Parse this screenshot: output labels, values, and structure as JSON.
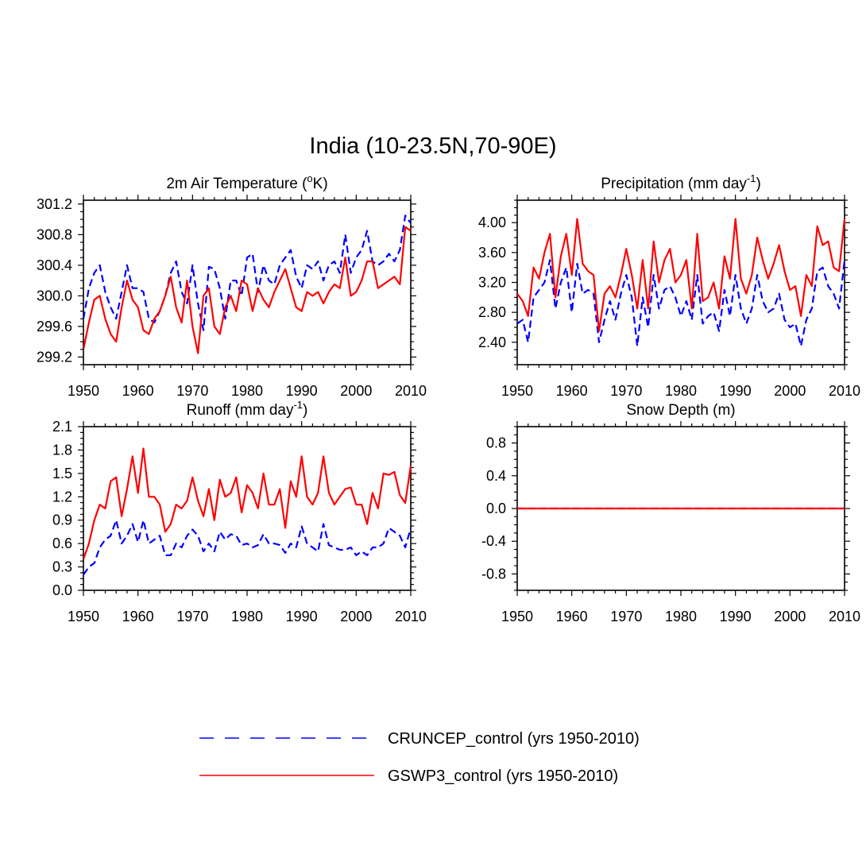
{
  "title": "India (10-23.5N,70-90E)",
  "colors": {
    "cruncep": "#0000ff",
    "gswp3": "#ff0000"
  },
  "legend": [
    {
      "name": "CRUNCEP_control (yrs 1950-2010)",
      "color": "#0000ff",
      "style": "dashed"
    },
    {
      "name": "GSWP3_control (yrs 1950-2010)",
      "color": "#ff0000",
      "style": "solid"
    }
  ],
  "chart_data": [
    {
      "type": "line",
      "title": "2m Air Temperature (",
      "title_sup": "o",
      "title_after": "K)",
      "title_sup_after": "",
      "title_tail": "",
      "xlim": [
        1950,
        2010
      ],
      "ylim": [
        299.1,
        301.25
      ],
      "xticks": [
        1950,
        1960,
        1970,
        1980,
        1990,
        2000,
        2010
      ],
      "yticks": [
        299.2,
        299.6,
        300.0,
        300.4,
        300.8,
        301.2
      ],
      "ytick_labels": [
        "299.2",
        "299.6",
        "300.0",
        "300.4",
        "300.8",
        "301.2"
      ],
      "series": [
        {
          "name": "CRUNCEP_control (yrs 1950-2010)",
          "style": "dashed",
          "values": [
            299.7,
            300.1,
            300.3,
            300.4,
            300.05,
            299.85,
            299.7,
            300.05,
            300.4,
            300.1,
            300.1,
            300.05,
            299.7,
            299.65,
            299.8,
            300.0,
            300.3,
            300.45,
            300.05,
            299.9,
            300.4,
            299.9,
            299.55,
            300.38,
            300.35,
            300.1,
            299.7,
            300.2,
            300.2,
            300.0,
            300.5,
            300.55,
            300.05,
            300.4,
            300.2,
            300.15,
            300.4,
            300.5,
            300.6,
            300.25,
            300.1,
            300.4,
            300.35,
            300.45,
            300.2,
            300.4,
            300.45,
            300.3,
            300.8,
            300.3,
            300.5,
            300.6,
            300.85,
            300.45,
            300.4,
            300.45,
            300.55,
            300.45,
            300.6,
            301.05,
            300.95
          ]
        },
        {
          "name": "GSWP3_control (yrs 1950-2010)",
          "style": "solid",
          "values": [
            299.3,
            299.65,
            299.95,
            300.0,
            299.7,
            299.5,
            299.4,
            299.85,
            300.2,
            299.95,
            299.85,
            299.55,
            299.5,
            299.7,
            299.8,
            300.0,
            300.25,
            299.85,
            299.65,
            300.2,
            299.6,
            299.25,
            300.0,
            300.1,
            299.6,
            299.5,
            299.85,
            300.0,
            299.8,
            300.2,
            300.15,
            299.8,
            300.1,
            299.95,
            299.85,
            300.05,
            300.2,
            300.35,
            300.1,
            299.85,
            299.8,
            300.05,
            300.0,
            300.05,
            299.9,
            300.05,
            300.15,
            300.1,
            300.5,
            300.0,
            300.05,
            300.2,
            300.45,
            300.45,
            300.1,
            300.15,
            300.2,
            300.25,
            300.15,
            300.9,
            300.85
          ]
        }
      ]
    },
    {
      "type": "line",
      "title": "Precipitation (mm day",
      "title_sup": "-1",
      "title_after": ")",
      "xlim": [
        1950,
        2010
      ],
      "ylim": [
        2.1,
        4.3
      ],
      "xticks": [
        1950,
        1960,
        1970,
        1980,
        1990,
        2000,
        2010
      ],
      "yticks": [
        2.4,
        2.8,
        3.2,
        3.6,
        4.0
      ],
      "ytick_labels": [
        "2.40",
        "2.80",
        "3.20",
        "3.60",
        "4.00"
      ],
      "series": [
        {
          "name": "CRUNCEP_control (yrs 1950-2010)",
          "style": "dashed",
          "values": [
            2.65,
            2.7,
            2.4,
            3.0,
            3.1,
            3.2,
            3.5,
            2.85,
            3.2,
            3.4,
            2.8,
            3.45,
            3.05,
            3.1,
            3.05,
            2.4,
            2.7,
            2.95,
            2.7,
            3.05,
            3.3,
            3.0,
            2.35,
            3.0,
            2.6,
            3.3,
            2.85,
            3.1,
            3.15,
            3.0,
            2.75,
            2.95,
            2.7,
            3.3,
            2.65,
            2.75,
            2.8,
            2.55,
            3.1,
            2.75,
            3.3,
            2.85,
            2.65,
            2.85,
            3.3,
            2.95,
            2.8,
            2.85,
            3.05,
            2.7,
            2.6,
            2.65,
            2.35,
            2.7,
            2.85,
            3.35,
            3.4,
            3.15,
            3.05,
            2.85,
            3.5
          ]
        },
        {
          "name": "GSWP3_control (yrs 1950-2010)",
          "style": "solid",
          "values": [
            3.05,
            2.95,
            2.75,
            3.4,
            3.25,
            3.6,
            3.85,
            3.0,
            3.55,
            3.85,
            3.3,
            4.05,
            3.45,
            3.35,
            3.3,
            2.55,
            3.05,
            3.15,
            3.0,
            3.3,
            3.65,
            3.3,
            2.85,
            3.5,
            2.85,
            3.75,
            3.2,
            3.5,
            3.65,
            3.2,
            3.3,
            3.5,
            2.85,
            3.85,
            2.95,
            3.0,
            3.2,
            2.85,
            3.55,
            3.25,
            4.05,
            3.25,
            3.05,
            3.3,
            3.8,
            3.5,
            3.25,
            3.45,
            3.7,
            3.35,
            3.1,
            3.15,
            2.75,
            3.3,
            3.15,
            3.95,
            3.7,
            3.75,
            3.4,
            3.35,
            4.05
          ]
        }
      ]
    },
    {
      "type": "line",
      "title": "Runoff (mm day",
      "title_sup": "-1",
      "title_after": ")",
      "xlim": [
        1950,
        2010
      ],
      "ylim": [
        0.0,
        2.1
      ],
      "xticks": [
        1950,
        1960,
        1970,
        1980,
        1990,
        2000,
        2010
      ],
      "yticks": [
        0.0,
        0.3,
        0.6,
        0.9,
        1.2,
        1.5,
        1.8,
        2.1
      ],
      "ytick_labels": [
        "0.0",
        "0.3",
        "0.6",
        "0.9",
        "1.2",
        "1.5",
        "1.8",
        "2.1"
      ],
      "series": [
        {
          "name": "CRUNCEP_control (yrs 1950-2010)",
          "style": "dashed",
          "values": [
            0.2,
            0.3,
            0.35,
            0.55,
            0.65,
            0.7,
            0.9,
            0.6,
            0.7,
            0.85,
            0.62,
            0.9,
            0.6,
            0.65,
            0.7,
            0.45,
            0.45,
            0.6,
            0.55,
            0.7,
            0.78,
            0.7,
            0.5,
            0.6,
            0.5,
            0.75,
            0.65,
            0.72,
            0.7,
            0.58,
            0.6,
            0.55,
            0.58,
            0.72,
            0.6,
            0.6,
            0.58,
            0.48,
            0.6,
            0.55,
            0.82,
            0.6,
            0.55,
            0.5,
            0.85,
            0.58,
            0.55,
            0.52,
            0.52,
            0.55,
            0.45,
            0.5,
            0.45,
            0.55,
            0.55,
            0.6,
            0.8,
            0.75,
            0.7,
            0.55,
            0.8
          ]
        },
        {
          "name": "GSWP3_control (yrs 1950-2010)",
          "style": "solid",
          "values": [
            0.4,
            0.6,
            0.9,
            1.1,
            1.05,
            1.4,
            1.45,
            0.95,
            1.3,
            1.72,
            1.25,
            1.82,
            1.2,
            1.2,
            1.1,
            0.75,
            0.85,
            1.1,
            1.05,
            1.15,
            1.45,
            1.15,
            0.95,
            1.3,
            0.9,
            1.42,
            1.2,
            1.25,
            1.45,
            1.0,
            1.35,
            1.25,
            1.05,
            1.5,
            1.1,
            1.1,
            1.3,
            0.8,
            1.4,
            1.2,
            1.72,
            1.2,
            1.1,
            1.25,
            1.72,
            1.25,
            1.1,
            1.2,
            1.3,
            1.32,
            1.1,
            1.1,
            0.85,
            1.25,
            1.05,
            1.5,
            1.48,
            1.52,
            1.22,
            1.12,
            1.6
          ]
        }
      ]
    },
    {
      "type": "line",
      "title": "Snow Depth (m)",
      "title_sup": "",
      "title_after": "",
      "xlim": [
        1950,
        2010
      ],
      "ylim": [
        -1.0,
        1.0
      ],
      "xticks": [
        1950,
        1960,
        1970,
        1980,
        1990,
        2000,
        2010
      ],
      "yticks": [
        -0.8,
        -0.4,
        0.0,
        0.4,
        0.8
      ],
      "ytick_labels": [
        "-0.8",
        "-0.4",
        "0.0",
        "0.4",
        "0.8"
      ],
      "series": [
        {
          "name": "CRUNCEP_control (yrs 1950-2010)",
          "style": "dashed",
          "values": [
            0,
            0,
            0,
            0,
            0,
            0,
            0,
            0,
            0,
            0,
            0,
            0,
            0,
            0,
            0,
            0,
            0,
            0,
            0,
            0,
            0,
            0,
            0,
            0,
            0,
            0,
            0,
            0,
            0,
            0,
            0,
            0,
            0,
            0,
            0,
            0,
            0,
            0,
            0,
            0,
            0,
            0,
            0,
            0,
            0,
            0,
            0,
            0,
            0,
            0,
            0,
            0,
            0,
            0,
            0,
            0,
            0,
            0,
            0,
            0,
            0
          ]
        },
        {
          "name": "GSWP3_control (yrs 1950-2010)",
          "style": "solid",
          "values": [
            0,
            0,
            0,
            0,
            0,
            0,
            0,
            0,
            0,
            0,
            0,
            0,
            0,
            0,
            0,
            0,
            0,
            0,
            0,
            0,
            0,
            0,
            0,
            0,
            0,
            0,
            0,
            0,
            0,
            0,
            0,
            0,
            0,
            0,
            0,
            0,
            0,
            0,
            0,
            0,
            0,
            0,
            0,
            0,
            0,
            0,
            0,
            0,
            0,
            0,
            0,
            0,
            0,
            0,
            0,
            0,
            0,
            0,
            0,
            0,
            0
          ]
        }
      ]
    }
  ]
}
